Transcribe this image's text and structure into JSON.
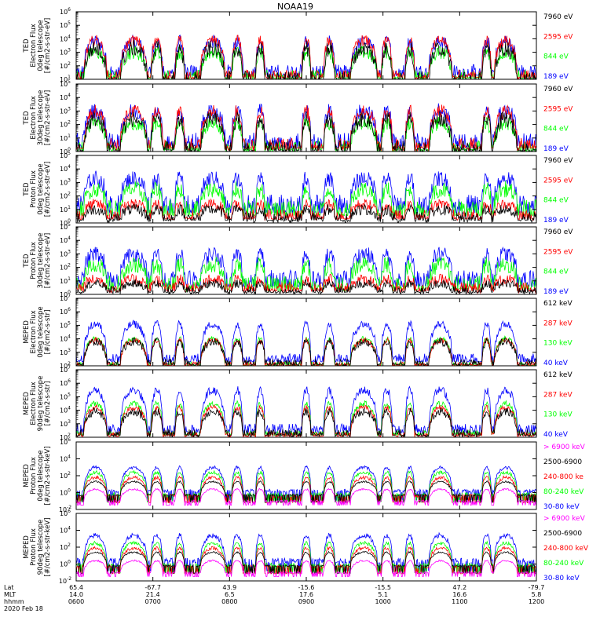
{
  "chart_data": {
    "type": "line",
    "title": "NOAA19",
    "date_label": "2020 Feb 18",
    "x_rows": {
      "names": [
        "Lat",
        "MLT",
        "hhmm"
      ],
      "columns": [
        [
          "65.4",
          "14.0",
          "0600"
        ],
        [
          "-67.7",
          "21.4",
          "0700"
        ],
        [
          "43.9",
          "6.5",
          "0800"
        ],
        [
          "-15.6",
          "17.6",
          "0900"
        ],
        [
          "-15.5",
          "5.1",
          "1000"
        ],
        [
          "47.2",
          "16.6",
          "1100"
        ],
        [
          "-79.7",
          "5.8",
          "1200"
        ]
      ]
    },
    "colors": {
      "blue": "#0000ff",
      "green": "#00ff00",
      "red": "#ff0000",
      "black": "#000000",
      "magenta": "#ff00ff"
    },
    "passes": [
      {
        "center": 0.25,
        "width": 0.3
      },
      {
        "center": 0.75,
        "width": 0.35
      },
      {
        "center": 1.05,
        "width": 0.15
      },
      {
        "center": 1.35,
        "width": 0.12
      },
      {
        "center": 1.78,
        "width": 0.32
      },
      {
        "center": 2.1,
        "width": 0.14
      },
      {
        "center": 2.4,
        "width": 0.12
      },
      {
        "center": 3.0,
        "width": 0.12
      },
      {
        "center": 3.3,
        "width": 0.14
      },
      {
        "center": 3.75,
        "width": 0.35
      },
      {
        "center": 4.05,
        "width": 0.14
      },
      {
        "center": 4.35,
        "width": 0.12
      },
      {
        "center": 4.75,
        "width": 0.3
      },
      {
        "center": 5.35,
        "width": 0.12
      },
      {
        "center": 5.6,
        "width": 0.3
      }
    ],
    "panels": [
      {
        "id": "ted-e-0",
        "ylabel": [
          "TED",
          "Electron Flux",
          "0deg telescope",
          "[#/cm2-s-str-eV]"
        ],
        "ymin": 1,
        "ymax": 6,
        "legend": [
          {
            "label": "7960 eV",
            "color": "black"
          },
          {
            "label": "2595 eV",
            "color": "red"
          },
          {
            "label": "844 eV",
            "color": "green"
          },
          {
            "label": "189 eV",
            "color": "blue"
          }
        ]
      },
      {
        "id": "ted-e-30",
        "ylabel": [
          "TED",
          "Electron Flux",
          "30deg telescope",
          "[#/cm2-s-str-eV]"
        ],
        "ymin": 0,
        "ymax": 5,
        "legend": [
          {
            "label": "7960 eV",
            "color": "black"
          },
          {
            "label": "2595 eV",
            "color": "red"
          },
          {
            "label": "844 eV",
            "color": "green"
          },
          {
            "label": "189 eV",
            "color": "blue"
          }
        ]
      },
      {
        "id": "ted-p-0",
        "ylabel": [
          "TED",
          "Proton Flux",
          "0deg telescope",
          "[#/cm2-s-str-eV]"
        ],
        "ymin": 0,
        "ymax": 5,
        "legend": [
          {
            "label": "7960 eV",
            "color": "black"
          },
          {
            "label": "2595 eV",
            "color": "red"
          },
          {
            "label": "844 eV",
            "color": "green"
          },
          {
            "label": "189 eV",
            "color": "blue"
          }
        ]
      },
      {
        "id": "ted-p-30",
        "ylabel": [
          "TED",
          "Proton Flux",
          "30deg telescope",
          "[#/cm2-s-str-eV]"
        ],
        "ymin": 0,
        "ymax": 5,
        "legend": [
          {
            "label": "7960 eV",
            "color": "black"
          },
          {
            "label": "2595 eV",
            "color": "red"
          },
          {
            "label": "844 eV",
            "color": "green"
          },
          {
            "label": "189 eV",
            "color": "blue"
          }
        ]
      },
      {
        "id": "meped-e-0",
        "ylabel": [
          "MEPED",
          "Electron Flux",
          "0deg telescope",
          "[#/cm2-s-str]"
        ],
        "ymin": 2,
        "ymax": 7,
        "legend": [
          {
            "label": "612 keV",
            "color": "black"
          },
          {
            "label": "287 keV",
            "color": "red"
          },
          {
            "label": "130 keV",
            "color": "green"
          },
          {
            "label": "40 keV",
            "color": "blue"
          }
        ]
      },
      {
        "id": "meped-e-90",
        "ylabel": [
          "MEPED",
          "Electron Flux",
          "90deg telescope",
          "[#/cm2-s-str]"
        ],
        "ymin": 2,
        "ymax": 7,
        "legend": [
          {
            "label": "612 keV",
            "color": "black"
          },
          {
            "label": "287 keV",
            "color": "red"
          },
          {
            "label": "130 keV",
            "color": "green"
          },
          {
            "label": "40 keV",
            "color": "blue"
          }
        ]
      },
      {
        "id": "meped-p-0",
        "ylabel": [
          "MEPED",
          "Proton Flux",
          "0deg telescope",
          "[#/cm2-s-str-keV]"
        ],
        "ymin": -2,
        "ymax": 6,
        "step": 2,
        "legend": [
          {
            "label": "> 6900 keV",
            "color": "magenta"
          },
          {
            "label": "2500-6900",
            "color": "black"
          },
          {
            "label": "240-800 ke",
            "color": "red"
          },
          {
            "label": "80-240 keV",
            "color": "green"
          },
          {
            "label": "30-80 keV",
            "color": "blue"
          }
        ]
      },
      {
        "id": "meped-p-90",
        "ylabel": [
          "MEPED",
          "Proton Flux",
          "90deg telescope",
          "[#/cm2-s-str-keV]"
        ],
        "ymin": -2,
        "ymax": 6,
        "step": 2,
        "legend": [
          {
            "label": "> 6900 keV",
            "color": "magenta"
          },
          {
            "label": "2500-6900",
            "color": "black"
          },
          {
            "label": "240-800 keV",
            "color": "red"
          },
          {
            "label": "80-240 keV",
            "color": "green"
          },
          {
            "label": "30-80 keV",
            "color": "blue"
          }
        ]
      }
    ]
  }
}
